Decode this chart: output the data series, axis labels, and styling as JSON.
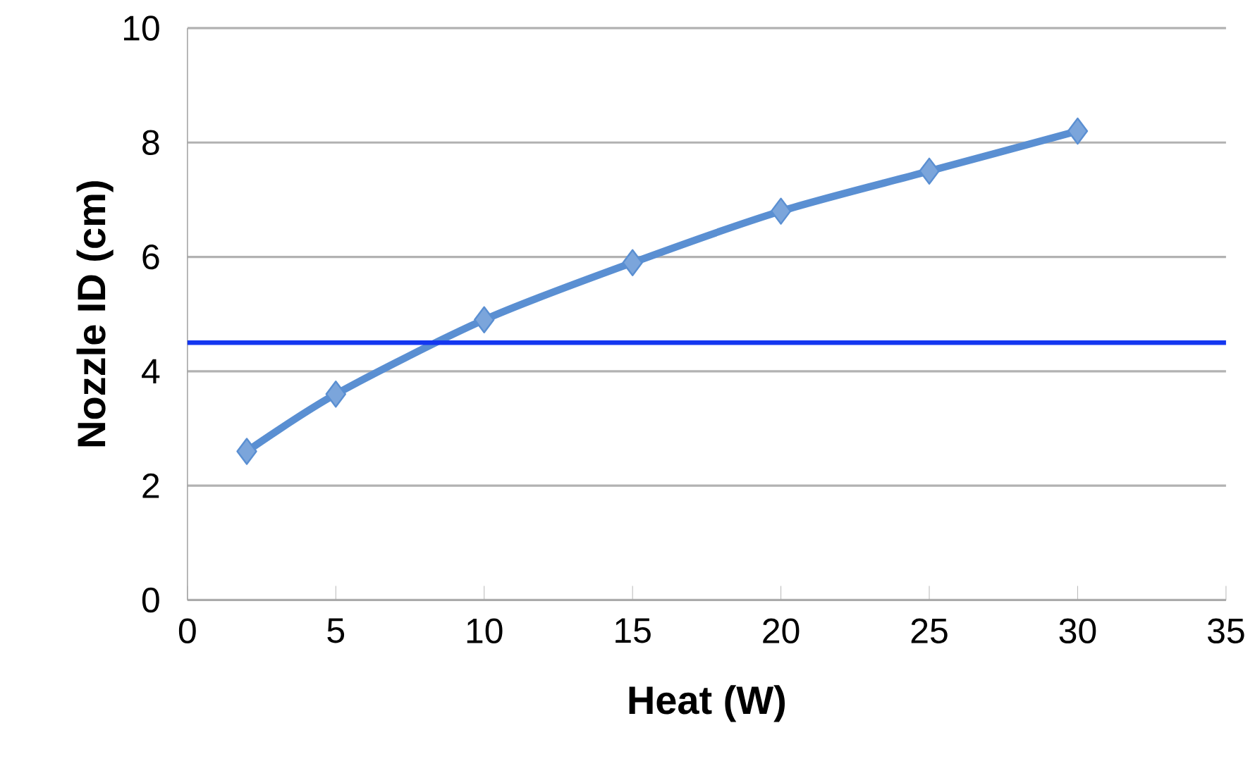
{
  "chart_data": {
    "type": "line",
    "xlabel": "Heat (W)",
    "ylabel": "Nozzle ID (cm)",
    "x": [
      2,
      5,
      10,
      15,
      20,
      25,
      30
    ],
    "series": [
      {
        "color": "#5a8fd2",
        "values": [
          2.6,
          3.6,
          4.9,
          5.9,
          6.8,
          7.5,
          8.2
        ]
      }
    ],
    "xlim": [
      0,
      35
    ],
    "xticks": [
      0,
      5,
      10,
      15,
      20,
      25,
      30,
      35
    ],
    "ylim": [
      0,
      10
    ],
    "yticks": [
      0,
      2,
      4,
      6,
      8,
      10
    ],
    "ref_lines": [
      {
        "axis": "y",
        "value": 4.5,
        "color": "#1437f0"
      }
    ],
    "grid": "y",
    "marker": "diamond"
  }
}
